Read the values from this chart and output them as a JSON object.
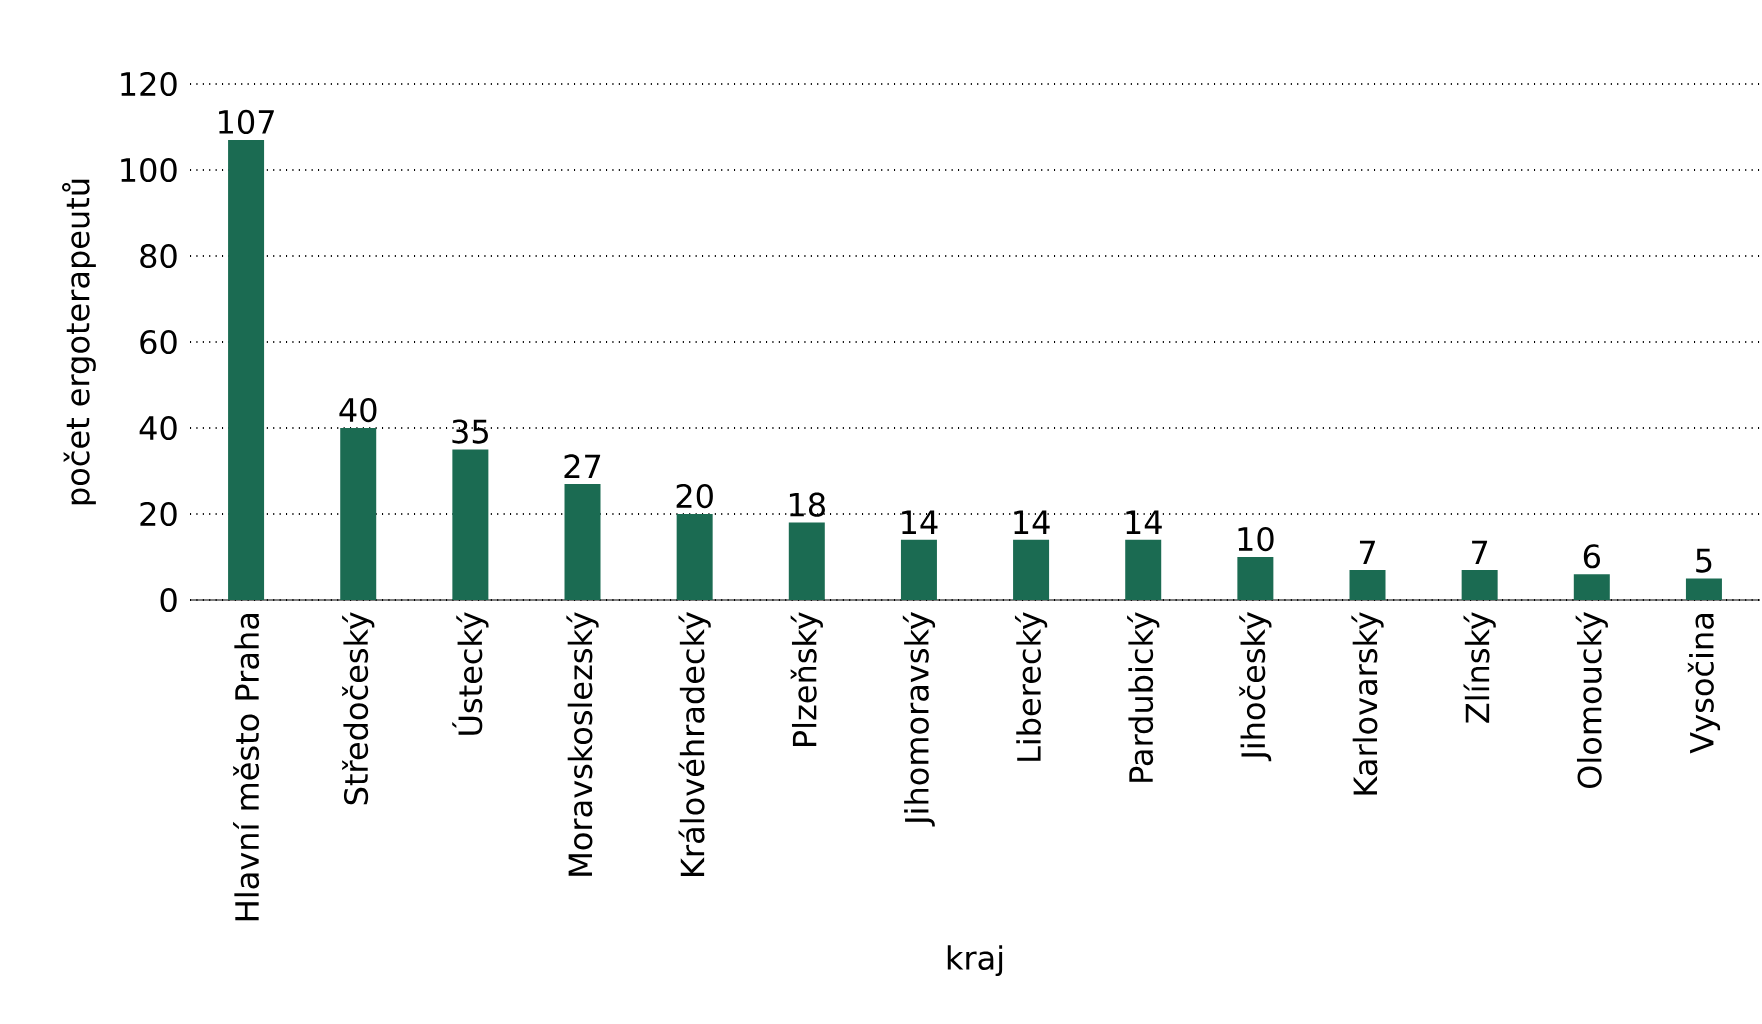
{
  "chart_data": {
    "type": "bar",
    "xlabel": "kraj",
    "ylabel": "počet ergoterapeutů",
    "categories": [
      "Hlavní město Praha",
      "Středočeský",
      "Ústecký",
      "Moravskoslezský",
      "Královéhradecký",
      "Plzeňský",
      "Jihomoravský",
      "Liberecký",
      "Pardubický",
      "Jihočeský",
      "Karlovarský",
      "Zlínský",
      "Olomoucký",
      "Vysočina"
    ],
    "values": [
      107,
      40,
      35,
      27,
      20,
      18,
      14,
      14,
      14,
      10,
      7,
      7,
      6,
      5
    ],
    "color": "#1b6b52",
    "ylim": [
      0,
      120
    ],
    "yticks": [
      0,
      20,
      40,
      60,
      80,
      100,
      120
    ],
    "grid": "y",
    "data_labels": true
  }
}
